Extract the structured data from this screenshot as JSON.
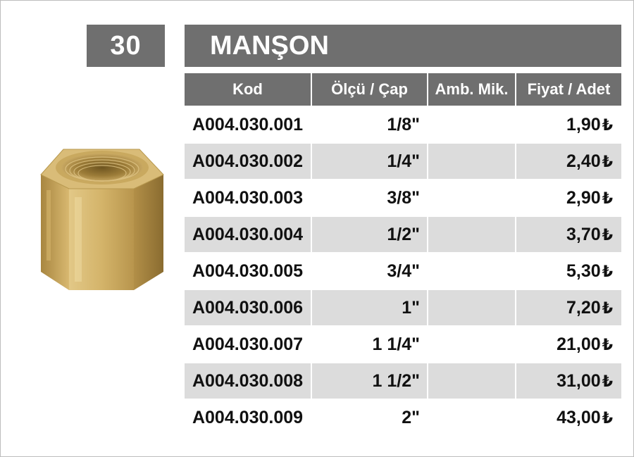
{
  "page_number": "30",
  "title": "MANŞON",
  "table": {
    "headers": [
      "Kod",
      "Ölçü / Çap",
      "Amb. Mik.",
      "Fiyat / Adet"
    ],
    "currency_symbol": "₺",
    "rows": [
      {
        "code": "A004.030.001",
        "size": "1/8\"",
        "pack": "",
        "price": "1,90"
      },
      {
        "code": "A004.030.002",
        "size": "1/4\"",
        "pack": "",
        "price": "2,40"
      },
      {
        "code": "A004.030.003",
        "size": "3/8\"",
        "pack": "",
        "price": "2,90"
      },
      {
        "code": "A004.030.004",
        "size": "1/2\"",
        "pack": "",
        "price": "3,70"
      },
      {
        "code": "A004.030.005",
        "size": "3/4\"",
        "pack": "",
        "price": "5,30"
      },
      {
        "code": "A004.030.006",
        "size": "1\"",
        "pack": "",
        "price": "7,20"
      },
      {
        "code": "A004.030.007",
        "size": "1 1/4\"",
        "pack": "",
        "price": "21,00"
      },
      {
        "code": "A004.030.008",
        "size": "1 1/2\"",
        "pack": "",
        "price": "31,00"
      },
      {
        "code": "A004.030.009",
        "size": "2\"",
        "pack": "",
        "price": "43,00"
      }
    ]
  },
  "colors": {
    "header_bg": "#6f6f6f",
    "row_shade": "#dcdcdc",
    "brass": "#c9a45a"
  },
  "image": {
    "icon": "brass-hex-socket-icon"
  }
}
